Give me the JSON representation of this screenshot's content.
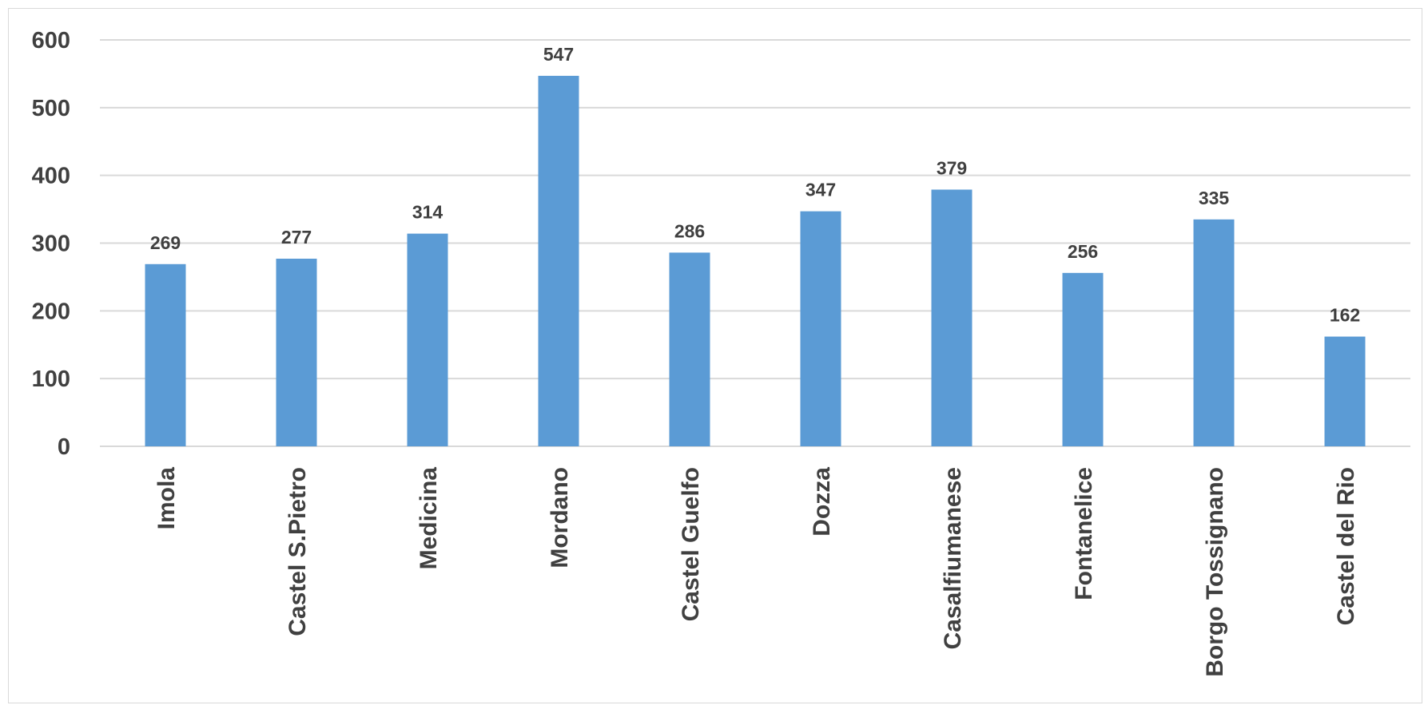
{
  "chart_data": {
    "type": "bar",
    "categories": [
      "Imola",
      "Castel S.Pietro",
      "Medicina",
      "Mordano",
      "Castel Guelfo",
      "Dozza",
      "Casalfiumanese",
      "Fontanelice",
      "Borgo Tossignano",
      "Castel del Rio"
    ],
    "values": [
      269,
      277,
      314,
      547,
      286,
      347,
      379,
      256,
      335,
      162
    ],
    "data_labels": [
      "269",
      "277",
      "314",
      "547",
      "286",
      "347",
      "379",
      "256",
      "335",
      "162"
    ],
    "y_ticks": [
      "0",
      "100",
      "200",
      "300",
      "400",
      "500",
      "600"
    ],
    "ylim": [
      0,
      600
    ],
    "grid": true,
    "legend": "none",
    "bar_color": "#5b9bd5",
    "grid_color": "#d9d9d9",
    "text_color": "#404040"
  }
}
